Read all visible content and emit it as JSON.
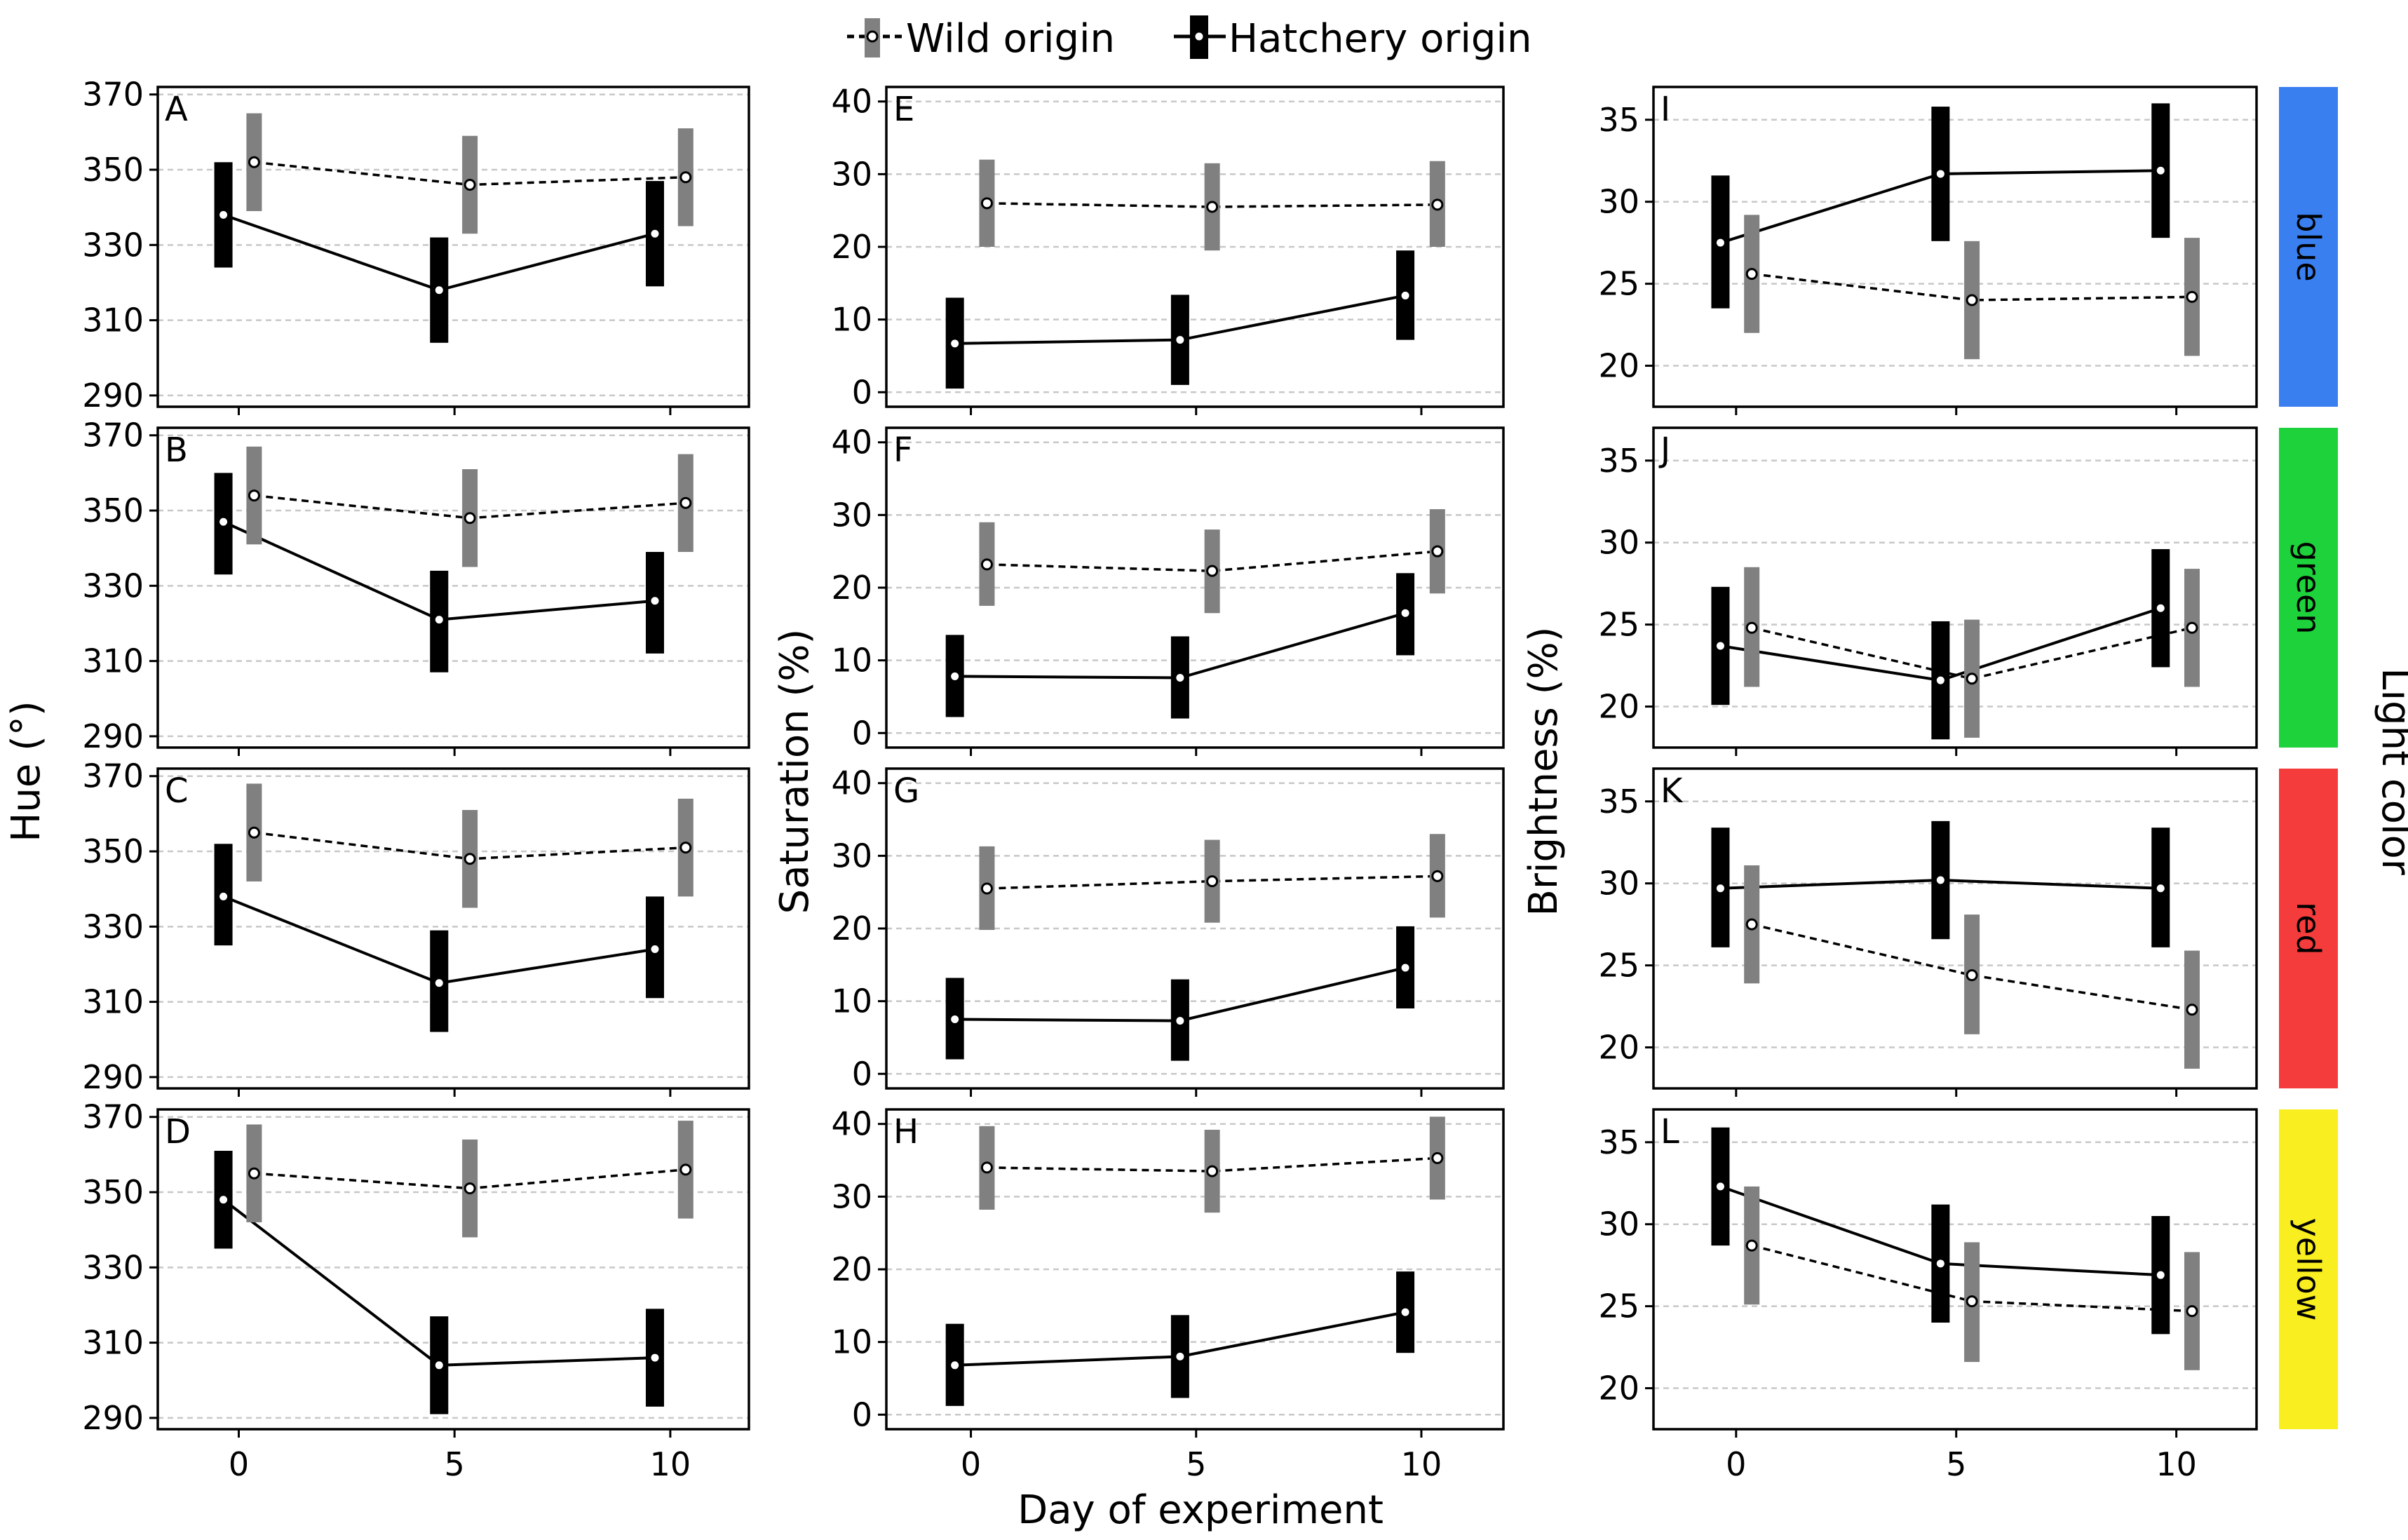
{
  "legend": {
    "wild_label": "Wild origin",
    "hatchery_label": "Hatchery origin"
  },
  "axes": {
    "x_title": "Day of experiment",
    "x_ticks": [
      "0",
      "5",
      "10"
    ],
    "hue_title": "Hue (°)",
    "saturation_title": "Saturation (%)",
    "brightness_title": "Brightness (%)",
    "strip_title": "Light color"
  },
  "colors": {
    "wild": "#808080",
    "hatchery": "#000000",
    "blue": "#3a7ff0",
    "green": "#1ed23c",
    "red": "#f53c3c",
    "yellow": "#f8ee20"
  },
  "strips": [
    {
      "label": "blue",
      "color": "#3a7ff0"
    },
    {
      "label": "green",
      "color": "#1ed23c"
    },
    {
      "label": "red",
      "color": "#f53c3c"
    },
    {
      "label": "yellow",
      "color": "#f8ee20"
    }
  ],
  "chart_data": [
    {
      "panel": "A",
      "type": "line",
      "x": [
        0,
        5,
        10
      ],
      "ylim": [
        287,
        372
      ],
      "yticks": [
        290,
        310,
        330,
        350,
        370
      ],
      "light": "blue",
      "measure": "Hue",
      "series": [
        {
          "name": "Wild origin",
          "values": [
            352,
            346,
            348
          ],
          "lower": [
            339,
            333,
            335
          ],
          "upper": [
            365,
            359,
            361
          ]
        },
        {
          "name": "Hatchery origin",
          "values": [
            338,
            318,
            333
          ],
          "lower": [
            324,
            304,
            319
          ],
          "upper": [
            352,
            332,
            347
          ]
        }
      ]
    },
    {
      "panel": "B",
      "type": "line",
      "x": [
        0,
        5,
        10
      ],
      "ylim": [
        287,
        372
      ],
      "yticks": [
        290,
        310,
        330,
        350,
        370
      ],
      "light": "green",
      "measure": "Hue",
      "series": [
        {
          "name": "Wild origin",
          "values": [
            354,
            348,
            352
          ],
          "lower": [
            341,
            335,
            339
          ],
          "upper": [
            367,
            361,
            365
          ]
        },
        {
          "name": "Hatchery origin",
          "values": [
            347,
            321,
            326
          ],
          "lower": [
            333,
            307,
            312
          ],
          "upper": [
            360,
            334,
            339
          ]
        }
      ]
    },
    {
      "panel": "C",
      "type": "line",
      "x": [
        0,
        5,
        10
      ],
      "ylim": [
        287,
        372
      ],
      "yticks": [
        290,
        310,
        330,
        350,
        370
      ],
      "light": "red",
      "measure": "Hue",
      "series": [
        {
          "name": "Wild origin",
          "values": [
            355,
            348,
            351
          ],
          "lower": [
            342,
            335,
            338
          ],
          "upper": [
            368,
            361,
            364
          ]
        },
        {
          "name": "Hatchery origin",
          "values": [
            338,
            315,
            324
          ],
          "lower": [
            325,
            302,
            311
          ],
          "upper": [
            352,
            329,
            338
          ]
        }
      ]
    },
    {
      "panel": "D",
      "type": "line",
      "x": [
        0,
        5,
        10
      ],
      "ylim": [
        287,
        372
      ],
      "yticks": [
        290,
        310,
        330,
        350,
        370
      ],
      "light": "yellow",
      "measure": "Hue",
      "series": [
        {
          "name": "Wild origin",
          "values": [
            355,
            351,
            356
          ],
          "lower": [
            342,
            338,
            343
          ],
          "upper": [
            368,
            364,
            369
          ]
        },
        {
          "name": "Hatchery origin",
          "values": [
            348,
            304,
            306
          ],
          "lower": [
            335,
            291,
            293
          ],
          "upper": [
            361,
            317,
            319
          ]
        }
      ]
    },
    {
      "panel": "E",
      "type": "line",
      "x": [
        0,
        5,
        10
      ],
      "ylim": [
        -2,
        42
      ],
      "yticks": [
        0,
        10,
        20,
        30,
        40
      ],
      "light": "blue",
      "measure": "Saturation",
      "series": [
        {
          "name": "Wild origin",
          "values": [
            26,
            25.5,
            25.8
          ],
          "lower": [
            20,
            19.5,
            20
          ],
          "upper": [
            32,
            31.5,
            31.8
          ]
        },
        {
          "name": "Hatchery origin",
          "values": [
            6.7,
            7.2,
            13.3
          ],
          "lower": [
            0.5,
            1,
            7.2
          ],
          "upper": [
            13,
            13.4,
            19.5
          ]
        }
      ]
    },
    {
      "panel": "F",
      "type": "line",
      "x": [
        0,
        5,
        10
      ],
      "ylim": [
        -2,
        42
      ],
      "yticks": [
        0,
        10,
        20,
        30,
        40
      ],
      "light": "green",
      "measure": "Saturation",
      "series": [
        {
          "name": "Wild origin",
          "values": [
            23.2,
            22.3,
            25
          ],
          "lower": [
            17.5,
            16.5,
            19.2
          ],
          "upper": [
            29,
            28,
            30.8
          ]
        },
        {
          "name": "Hatchery origin",
          "values": [
            7.8,
            7.6,
            16.5
          ],
          "lower": [
            2.2,
            2,
            10.7
          ],
          "upper": [
            13.5,
            13.3,
            22
          ]
        }
      ]
    },
    {
      "panel": "G",
      "type": "line",
      "x": [
        0,
        5,
        10
      ],
      "ylim": [
        -2,
        42
      ],
      "yticks": [
        0,
        10,
        20,
        30,
        40
      ],
      "light": "red",
      "measure": "Saturation",
      "series": [
        {
          "name": "Wild origin",
          "values": [
            25.5,
            26.5,
            27.2
          ],
          "lower": [
            19.8,
            20.8,
            21.5
          ],
          "upper": [
            31.3,
            32.2,
            33
          ]
        },
        {
          "name": "Hatchery origin",
          "values": [
            7.5,
            7.3,
            14.6
          ],
          "lower": [
            2,
            1.8,
            9
          ],
          "upper": [
            13.2,
            13,
            20.3
          ]
        }
      ]
    },
    {
      "panel": "H",
      "type": "line",
      "x": [
        0,
        5,
        10
      ],
      "ylim": [
        -2,
        42
      ],
      "yticks": [
        0,
        10,
        20,
        30,
        40
      ],
      "light": "yellow",
      "measure": "Saturation",
      "series": [
        {
          "name": "Wild origin",
          "values": [
            34,
            33.5,
            35.3
          ],
          "lower": [
            28.2,
            27.8,
            29.6
          ],
          "upper": [
            39.7,
            39.2,
            41
          ]
        },
        {
          "name": "Hatchery origin",
          "values": [
            6.8,
            8,
            14.1
          ],
          "lower": [
            1.2,
            2.3,
            8.5
          ],
          "upper": [
            12.5,
            13.7,
            19.7
          ]
        }
      ]
    },
    {
      "panel": "I",
      "type": "line",
      "x": [
        0,
        5,
        10
      ],
      "ylim": [
        17.5,
        37
      ],
      "yticks": [
        20,
        25,
        30,
        35
      ],
      "light": "blue",
      "measure": "Brightness",
      "series": [
        {
          "name": "Wild origin",
          "values": [
            25.6,
            24,
            24.2
          ],
          "lower": [
            22,
            20.4,
            20.6
          ],
          "upper": [
            29.2,
            27.6,
            27.8
          ]
        },
        {
          "name": "Hatchery origin",
          "values": [
            27.5,
            31.7,
            31.9
          ],
          "lower": [
            23.5,
            27.6,
            27.8
          ],
          "upper": [
            31.6,
            35.8,
            36
          ]
        }
      ]
    },
    {
      "panel": "J",
      "type": "line",
      "x": [
        0,
        5,
        10
      ],
      "ylim": [
        17.5,
        37
      ],
      "yticks": [
        20,
        25,
        30,
        35
      ],
      "light": "green",
      "measure": "Brightness",
      "series": [
        {
          "name": "Wild origin",
          "values": [
            24.8,
            21.7,
            24.8
          ],
          "lower": [
            21.2,
            18.1,
            21.2
          ],
          "upper": [
            28.5,
            25.3,
            28.4
          ]
        },
        {
          "name": "Hatchery origin",
          "values": [
            23.7,
            21.6,
            26
          ],
          "lower": [
            20.1,
            18,
            22.4
          ],
          "upper": [
            27.3,
            25.2,
            29.6
          ]
        }
      ]
    },
    {
      "panel": "K",
      "type": "line",
      "x": [
        0,
        5,
        10
      ],
      "ylim": [
        17.5,
        37
      ],
      "yticks": [
        20,
        25,
        30,
        35
      ],
      "light": "red",
      "measure": "Brightness",
      "series": [
        {
          "name": "Wild origin",
          "values": [
            27.5,
            24.4,
            22.3
          ],
          "lower": [
            23.9,
            20.8,
            18.7
          ],
          "upper": [
            31.1,
            28.1,
            25.9
          ]
        },
        {
          "name": "Hatchery origin",
          "values": [
            29.7,
            30.2,
            29.7
          ],
          "lower": [
            26.1,
            26.6,
            26.1
          ],
          "upper": [
            33.4,
            33.8,
            33.4
          ]
        }
      ]
    },
    {
      "panel": "L",
      "type": "line",
      "x": [
        0,
        5,
        10
      ],
      "ylim": [
        17.5,
        37
      ],
      "yticks": [
        20,
        25,
        30,
        35
      ],
      "light": "yellow",
      "measure": "Brightness",
      "series": [
        {
          "name": "Wild origin",
          "values": [
            28.7,
            25.3,
            24.7
          ],
          "lower": [
            25.1,
            21.6,
            21.1
          ],
          "upper": [
            32.3,
            28.9,
            28.3
          ]
        },
        {
          "name": "Hatchery origin",
          "values": [
            32.3,
            27.6,
            26.9
          ],
          "lower": [
            28.7,
            24,
            23.3
          ],
          "upper": [
            35.9,
            31.2,
            30.5
          ]
        }
      ]
    }
  ]
}
